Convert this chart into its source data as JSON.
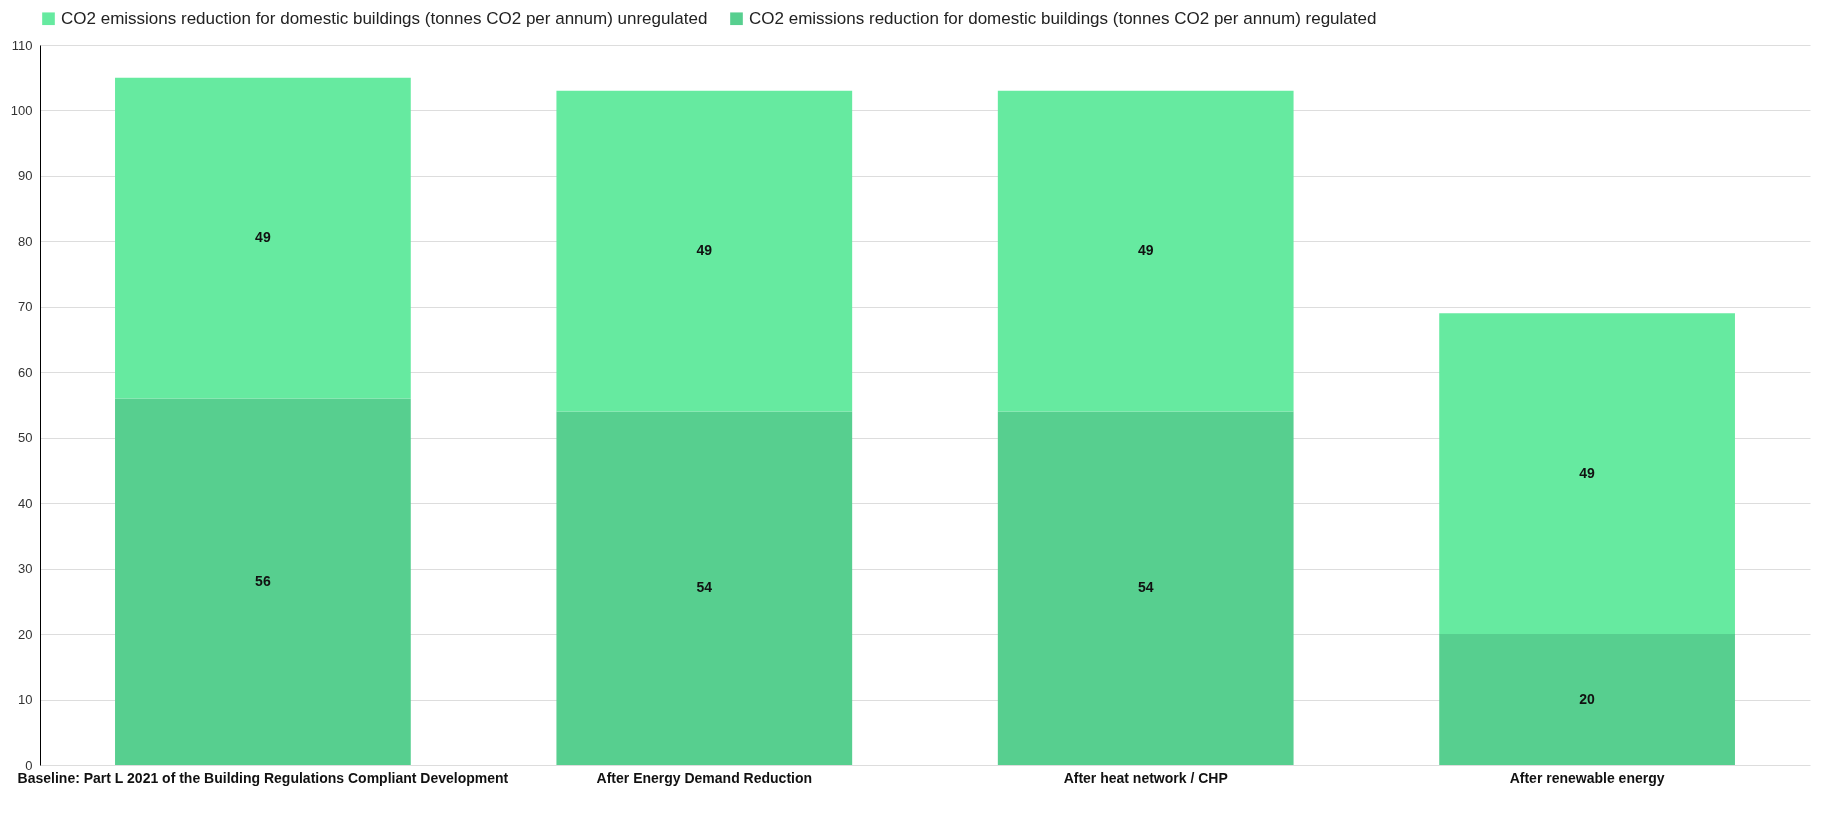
{
  "chart_data": {
    "type": "bar",
    "stacked": true,
    "categories": [
      "Baseline: Part L 2021 of the Building Regulations Compliant Development",
      "After Energy Demand Reduction",
      "After heat network / CHP",
      "After renewable energy"
    ],
    "series": [
      {
        "name": "CO2 emissions reduction for domestic buildings (tonnes CO2 per annum) regulated",
        "color": "#57cf8f",
        "values": [
          56,
          54,
          54,
          20
        ]
      },
      {
        "name": "CO2 emissions reduction for domestic buildings (tonnes CO2 per annum) unregulated",
        "color": "#66eaa0",
        "values": [
          49,
          49,
          49,
          49
        ]
      }
    ],
    "ylim": [
      0,
      110
    ],
    "yticks": [
      0,
      10,
      20,
      30,
      40,
      50,
      60,
      70,
      80,
      90,
      100,
      110
    ],
    "grid": true,
    "legend": "top",
    "data_labels": true
  }
}
